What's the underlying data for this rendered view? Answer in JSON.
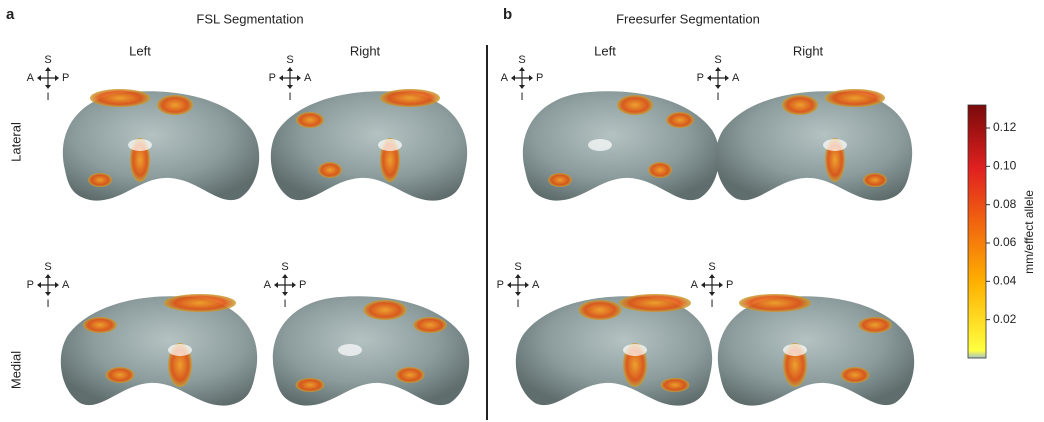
{
  "rows": [
    "Lateral",
    "Medial"
  ],
  "panels": [
    {
      "label": "a",
      "title": "FSL Segmentation",
      "columns": [
        "Left",
        "Right"
      ],
      "compasses": [
        {
          "top": "S",
          "bottom": "I",
          "left": "A",
          "right": "P"
        },
        {
          "top": "S",
          "bottom": "I",
          "left": "P",
          "right": "A"
        },
        {
          "top": "S",
          "bottom": "I",
          "left": "P",
          "right": "A"
        },
        {
          "top": "S",
          "bottom": "I",
          "left": "A",
          "right": "P"
        }
      ]
    },
    {
      "label": "b",
      "title": "Freesurfer Segmentation",
      "columns": [
        "Left",
        "Right"
      ],
      "compasses": [
        {
          "top": "S",
          "bottom": "I",
          "left": "A",
          "right": "P"
        },
        {
          "top": "S",
          "bottom": "I",
          "left": "P",
          "right": "A"
        },
        {
          "top": "S",
          "bottom": "I",
          "left": "P",
          "right": "A"
        },
        {
          "top": "S",
          "bottom": "I",
          "left": "A",
          "right": "P"
        }
      ]
    }
  ],
  "colorbar": {
    "label": "mm/effect allele",
    "lim": [
      0,
      0.132
    ],
    "ticks": [
      0.02,
      0.04,
      0.06,
      0.08,
      {
        "value": 0.1,
        "label": "0.10"
      },
      0.12
    ]
  }
}
